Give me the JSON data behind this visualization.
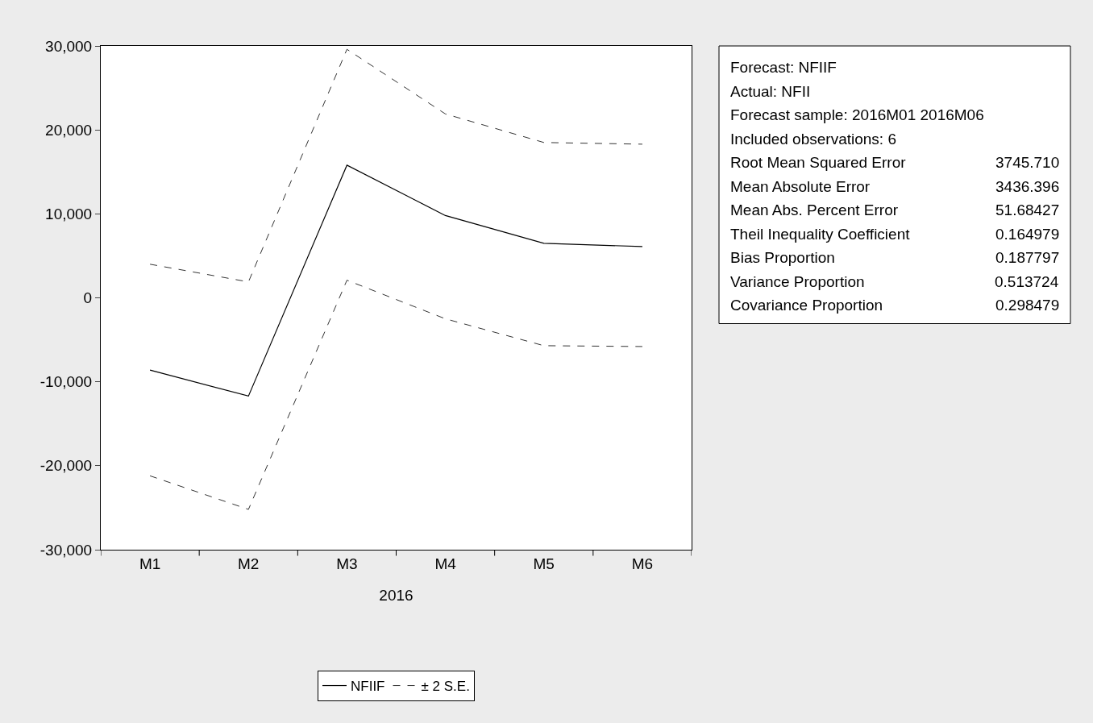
{
  "chart_data": {
    "type": "line",
    "xlabel": "2016",
    "categories": [
      "M1",
      "M2",
      "M3",
      "M4",
      "M5",
      "M6"
    ],
    "series": [
      {
        "name": "NFIIF",
        "color": "#000000",
        "line_style": "solid",
        "values": [
          -8600,
          -11700,
          15800,
          9800,
          6500,
          6100
        ]
      },
      {
        "name": "± 2 S.E.",
        "color": "#333333",
        "line_style": "dashed",
        "values": [
          4000,
          1900,
          29600,
          21900,
          18500,
          18300
        ]
      },
      {
        "color": "#333333",
        "line_style": "dashed",
        "values": [
          -21200,
          -25200,
          2100,
          -2500,
          -5700,
          -5800
        ]
      }
    ],
    "ylim": [
      -30000,
      30000
    ],
    "yticks": [
      {
        "value": -30000,
        "label": "-30,000"
      },
      {
        "value": -20000,
        "label": "-20,000"
      },
      {
        "value": -10000,
        "label": "-10,000"
      },
      0,
      {
        "value": 10000,
        "label": "10,000"
      },
      {
        "value": 20000,
        "label": "20,000"
      },
      {
        "value": 30000,
        "label": "30,000"
      }
    ],
    "grid": false,
    "legend": "bottom",
    "marker": "none",
    "annotations": [
      "Forecast: NFIIF",
      "Actual: NFII",
      "Forecast sample: 2016M01 2016M06",
      "Included observations: 6",
      "Root Mean Squared Error\t3745.710",
      "Mean Absolute Error\t3436.396",
      "Mean Abs. Percent Error\t51.68427",
      "Theil Inequality Coefficient\t0.164979",
      "Bias Proportion\t0.187797",
      "Variance Proportion\t0.513724",
      "Covariance Proportion\t0.298479"
    ]
  }
}
